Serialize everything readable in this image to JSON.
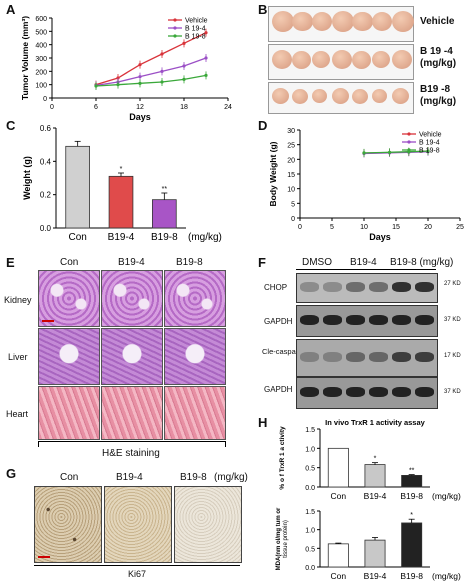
{
  "panels": {
    "A": {
      "label": "A",
      "ylabel": "Tumor Volume (mm³)",
      "xlabel": "Days"
    },
    "B": {
      "label": "B",
      "rows": [
        "Vehicle",
        "B 19 -4\n(mg/kg)",
        "B19 -8\n(mg/kg)"
      ]
    },
    "C": {
      "label": "C",
      "ylabel": "Weight (g)",
      "xunit": "(mg/kg)"
    },
    "D": {
      "label": "D",
      "ylabel": "Body Weight (g)",
      "xlabel": "Days"
    },
    "E": {
      "label": "E",
      "cols": [
        "Con",
        "B19-4",
        "B19-8"
      ],
      "rows": [
        "Kidney",
        "Liver",
        "Heart"
      ],
      "caption": "H&E staining"
    },
    "F": {
      "label": "F",
      "cols": [
        "DMSO",
        "B19-4",
        "B19-8 (mg/kg)"
      ],
      "rows": [
        "CHOP",
        "GAPDH",
        "Cle-caspase3",
        "GAPDH"
      ],
      "sizes": [
        "27 KD",
        "37 KD",
        "17 KD",
        "37 KD"
      ]
    },
    "G": {
      "label": "G",
      "cols": [
        "Con",
        "B19-4",
        "B19-8",
        "(mg/kg)"
      ],
      "caption": "Ki67"
    },
    "H": {
      "label": "H",
      "title": "In vivo TrxR 1 activity assay",
      "ylabel": "% o f TrxR 1 a ctivity",
      "ylabel2a": "MDA(nm ol/mg tum or",
      "ylabel2b": "tissue protein)",
      "xunit": "(mg/kg)"
    }
  },
  "chart_data": [
    {
      "type": "line",
      "panel": "A",
      "x": [
        6,
        9,
        12,
        15,
        18,
        21
      ],
      "series": [
        {
          "name": "Vehicle",
          "values": [
            100,
            150,
            250,
            330,
            410,
            490
          ],
          "color": "#d9333a"
        },
        {
          "name": "B 19-4",
          "values": [
            95,
            120,
            160,
            200,
            240,
            300
          ],
          "color": "#9b4fc6"
        },
        {
          "name": "B 19-8",
          "values": [
            90,
            100,
            110,
            120,
            140,
            170
          ],
          "color": "#3aa83a"
        }
      ],
      "xticks": [
        0,
        6,
        12,
        18,
        24
      ],
      "yticks": [
        0,
        100,
        200,
        300,
        400,
        500,
        600
      ],
      "xlim": [
        0,
        24
      ],
      "ylim": [
        0,
        600
      ]
    },
    {
      "type": "bar",
      "panel": "C",
      "categories": [
        "Con",
        "B19-4",
        "B19-8"
      ],
      "values": [
        0.49,
        0.31,
        0.17
      ],
      "errors": [
        0.03,
        0.02,
        0.04
      ],
      "colors": [
        "#d0d0d0",
        "#e04b4b",
        "#a855c6"
      ],
      "sig": [
        "",
        "*",
        "**"
      ],
      "yticks": [
        "0.0",
        "0.2",
        "0.4",
        "0.6"
      ],
      "ylim": [
        0,
        0.6
      ]
    },
    {
      "type": "line",
      "panel": "D",
      "x": [
        10,
        14,
        17,
        20
      ],
      "series": [
        {
          "name": "Vehicle",
          "values": [
            22.1,
            22.3,
            22.5,
            22.8
          ],
          "color": "#d9333a"
        },
        {
          "name": "B 19-4",
          "values": [
            22.0,
            22.2,
            22.4,
            22.6
          ],
          "color": "#9b4fc6"
        },
        {
          "name": "B 19-8",
          "values": [
            22.2,
            22.4,
            22.6,
            22.8
          ],
          "color": "#3aa83a"
        }
      ],
      "xticks": [
        0,
        5,
        10,
        15,
        20,
        25
      ],
      "yticks": [
        0,
        5,
        10,
        15,
        20,
        25,
        30
      ],
      "xlim": [
        0,
        25
      ],
      "ylim": [
        0,
        30
      ]
    },
    {
      "type": "bar",
      "panel": "H1",
      "categories": [
        "Con",
        "B19-4",
        "B19-8"
      ],
      "values": [
        1.0,
        0.58,
        0.3
      ],
      "errors": [
        0.0,
        0.05,
        0.02
      ],
      "colors": [
        "#ffffff",
        "#c8c8c8",
        "#222222"
      ],
      "sig": [
        "",
        "*",
        "**"
      ],
      "yticks": [
        "0.0",
        "0.5",
        "1.0",
        "1.5"
      ],
      "ylim": [
        0,
        1.5
      ]
    },
    {
      "type": "bar",
      "panel": "H2",
      "categories": [
        "Con",
        "B19-4",
        "B19-8"
      ],
      "values": [
        0.62,
        0.72,
        1.18
      ],
      "errors": [
        0.02,
        0.07,
        0.1
      ],
      "colors": [
        "#ffffff",
        "#c8c8c8",
        "#222222"
      ],
      "sig": [
        "",
        "",
        "*"
      ],
      "yticks": [
        "0.0",
        "0.5",
        "1.0",
        "1.5"
      ],
      "ylim": [
        0,
        1.5
      ]
    }
  ]
}
